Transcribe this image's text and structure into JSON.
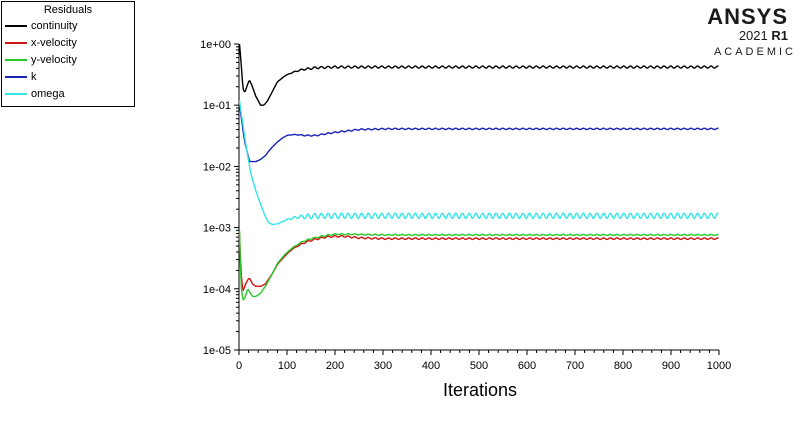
{
  "legend": {
    "title": "Residuals",
    "entries": [
      {
        "label": "continuity",
        "color": "#000000"
      },
      {
        "label": "x-velocity",
        "color": "#d21414"
      },
      {
        "label": "y-velocity",
        "color": "#28c828"
      },
      {
        "label": "k",
        "color": "#1a22b4"
      },
      {
        "label": "omega",
        "color": "#32e6e6"
      }
    ]
  },
  "logo": {
    "brand": "ANSYS",
    "release_year": "2021",
    "release_code": "R1",
    "edition": "ACADEMIC"
  },
  "chart_data": {
    "type": "line",
    "xlabel": "Iterations",
    "ylabel": "",
    "y_scale": "log",
    "xlim": [
      0,
      1000
    ],
    "ylim": [
      1e-05,
      1
    ],
    "x_ticks": [
      "0",
      "100",
      "200",
      "300",
      "400",
      "500",
      "600",
      "700",
      "800",
      "900",
      "1000"
    ],
    "y_ticks": [
      "1e+00",
      "1e-01",
      "1e-02",
      "1e-03",
      "1e-04",
      "1e-05"
    ],
    "series": [
      {
        "name": "continuity",
        "color": "#000000",
        "x": [
          1,
          4,
          8,
          12,
          18,
          22,
          28,
          35,
          45,
          52,
          60,
          70,
          80,
          95,
          110,
          130,
          160,
          200,
          250,
          300,
          400,
          500,
          600,
          700,
          800,
          900,
          1000
        ],
        "y": [
          1.0,
          0.55,
          0.19,
          0.16,
          0.22,
          0.26,
          0.2,
          0.14,
          0.1,
          0.1,
          0.12,
          0.17,
          0.24,
          0.3,
          0.34,
          0.38,
          0.41,
          0.42,
          0.42,
          0.42,
          0.42,
          0.42,
          0.42,
          0.42,
          0.42,
          0.42,
          0.42
        ],
        "oscillation": 0.04
      },
      {
        "name": "x-velocity",
        "color": "#d21414",
        "x": [
          1,
          4,
          8,
          12,
          18,
          22,
          28,
          35,
          45,
          55,
          70,
          80,
          95,
          110,
          130,
          150,
          180,
          200,
          220,
          250,
          300,
          400,
          500,
          600,
          700,
          800,
          900,
          1000
        ],
        "y": [
          0.0008,
          0.0002,
          9e-05,
          0.00011,
          0.00014,
          0.00015,
          0.00012,
          0.00011,
          0.00011,
          0.00012,
          0.00018,
          0.00025,
          0.00034,
          0.00044,
          0.00054,
          0.00062,
          0.0007,
          0.00072,
          0.00072,
          0.00068,
          0.00066,
          0.00066,
          0.00066,
          0.00066,
          0.00066,
          0.00066,
          0.00066,
          0.00066
        ],
        "oscillation": 0.03
      },
      {
        "name": "y-velocity",
        "color": "#28c828",
        "x": [
          1,
          4,
          8,
          12,
          18,
          22,
          28,
          35,
          45,
          55,
          70,
          80,
          95,
          110,
          130,
          150,
          180,
          200,
          230,
          260,
          300,
          400,
          500,
          600,
          700,
          800,
          900,
          1000
        ],
        "y": [
          0.0009,
          0.00012,
          6.5e-05,
          7e-05,
          0.0001,
          9e-05,
          7.5e-05,
          7.5e-05,
          8.5e-05,
          0.00011,
          0.00018,
          0.00026,
          0.00036,
          0.00046,
          0.00058,
          0.00066,
          0.00074,
          0.00078,
          0.00078,
          0.00077,
          0.00076,
          0.00076,
          0.00076,
          0.00076,
          0.00076,
          0.00076,
          0.00076,
          0.00076
        ],
        "oscillation": 0.02
      },
      {
        "name": "k",
        "color": "#1a22b4",
        "x": [
          1,
          4,
          8,
          12,
          18,
          22,
          28,
          35,
          45,
          55,
          60,
          70,
          80,
          90,
          100,
          110,
          120,
          140,
          160,
          180,
          200,
          250,
          300,
          400,
          500,
          600,
          700,
          800,
          900,
          1000
        ],
        "y": [
          0.11,
          0.07,
          0.04,
          0.025,
          0.016,
          0.012,
          0.012,
          0.012,
          0.013,
          0.015,
          0.017,
          0.021,
          0.025,
          0.029,
          0.032,
          0.033,
          0.033,
          0.032,
          0.032,
          0.034,
          0.036,
          0.04,
          0.041,
          0.041,
          0.041,
          0.041,
          0.041,
          0.041,
          0.041,
          0.041
        ],
        "oscillation": 0.025
      },
      {
        "name": "omega",
        "color": "#32e6e6",
        "x": [
          1,
          4,
          8,
          12,
          18,
          25,
          35,
          45,
          55,
          62,
          70,
          80,
          90,
          100,
          110,
          120,
          140,
          160,
          180,
          200,
          250,
          300,
          400,
          500,
          600,
          700,
          800,
          900,
          1000
        ],
        "y": [
          0.12,
          0.08,
          0.05,
          0.03,
          0.015,
          0.0075,
          0.004,
          0.0024,
          0.0015,
          0.0012,
          0.00112,
          0.00115,
          0.00125,
          0.00135,
          0.00142,
          0.00148,
          0.00152,
          0.00155,
          0.00156,
          0.00156,
          0.00156,
          0.00156,
          0.00156,
          0.00156,
          0.00156,
          0.00156,
          0.00156,
          0.00156,
          0.00156
        ],
        "oscillation": 0.1
      }
    ]
  }
}
